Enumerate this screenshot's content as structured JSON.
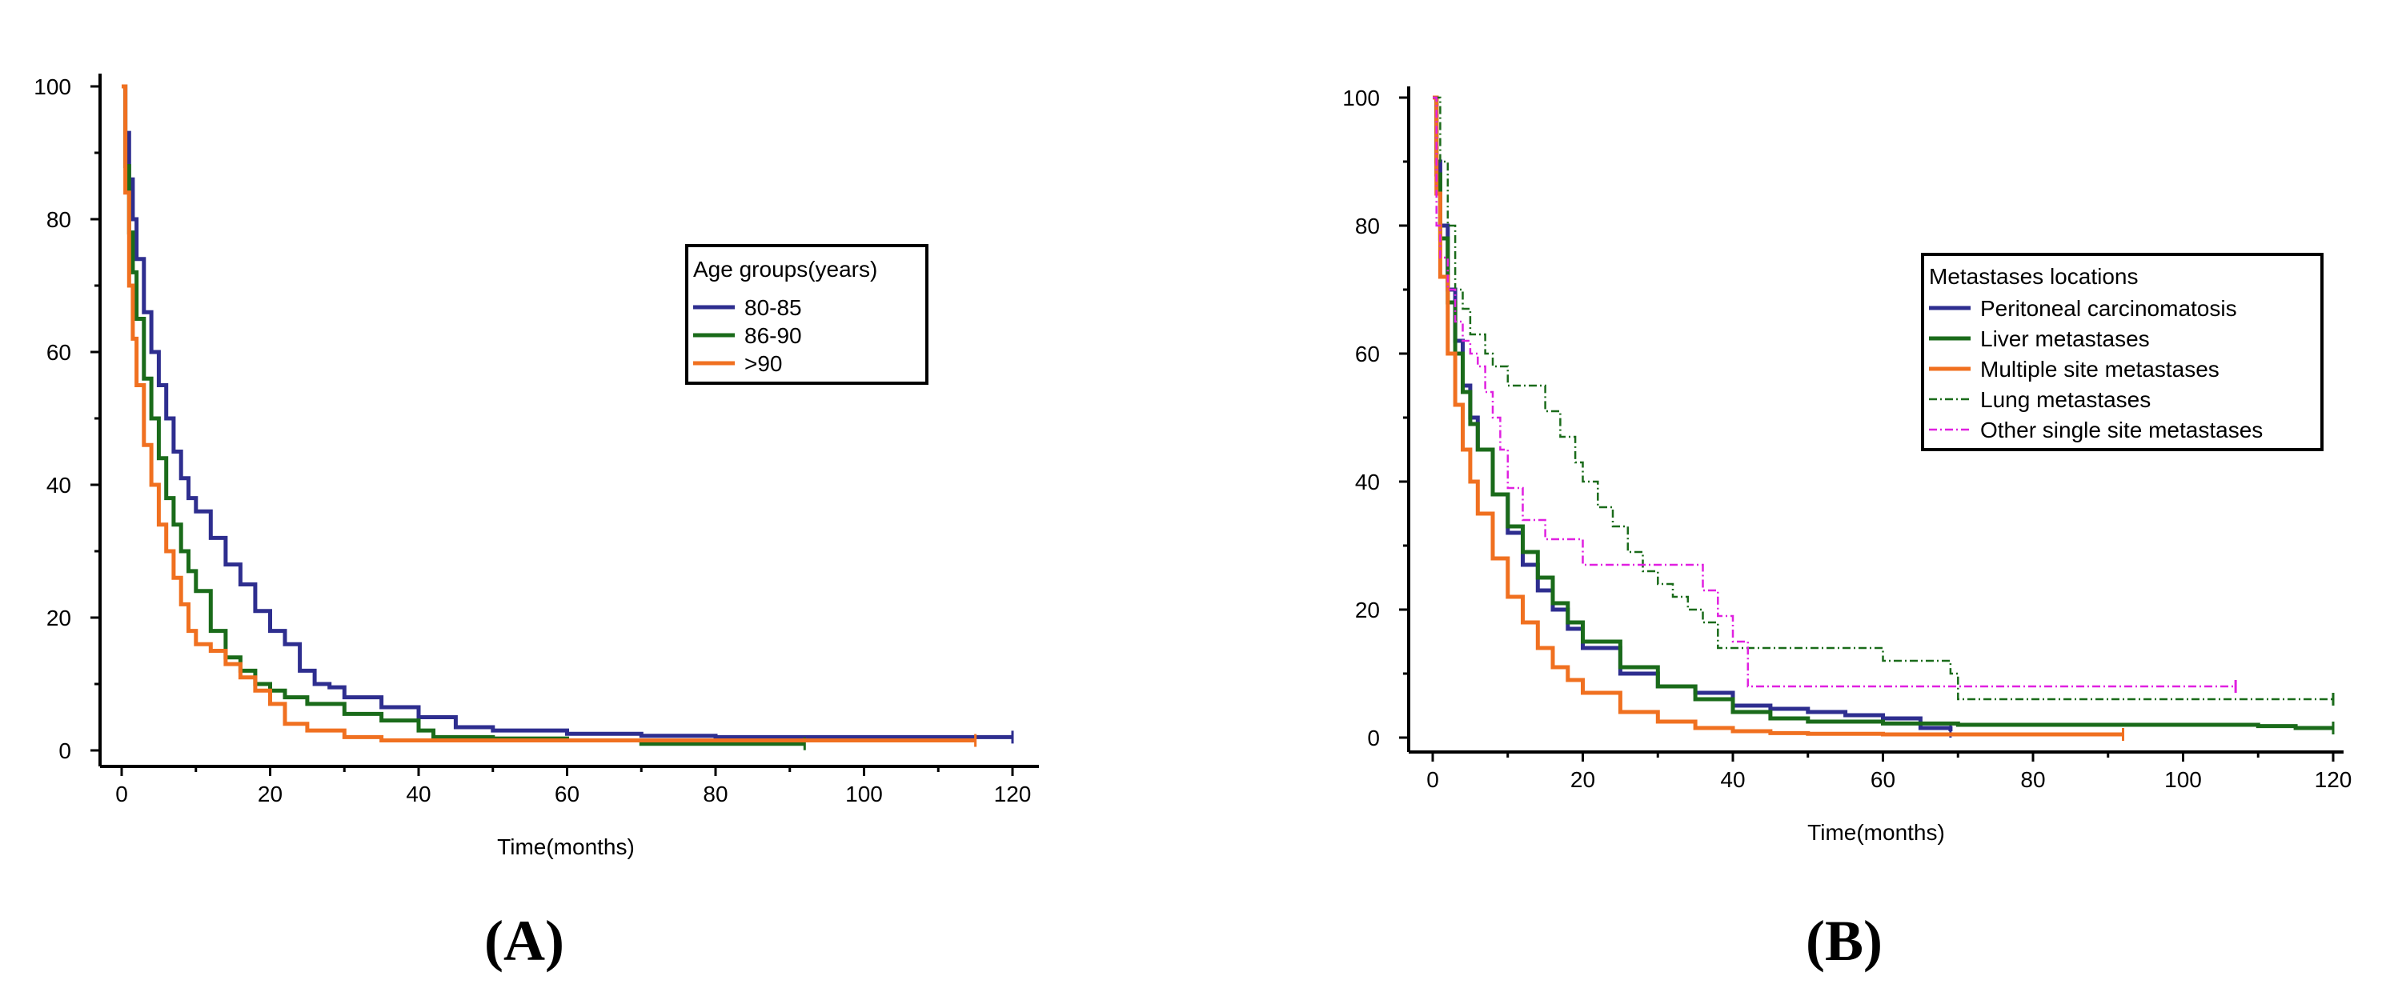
{
  "chart_data": [
    {
      "type": "line",
      "panel_label": "(A)",
      "xlabel": "Time(months)",
      "ylabel": "",
      "xlim": [
        0,
        120
      ],
      "ylim": [
        0,
        100
      ],
      "x_ticks": [
        0,
        20,
        40,
        60,
        80,
        100,
        120
      ],
      "y_ticks": [
        0,
        20,
        40,
        60,
        80,
        100
      ],
      "legend_title": "Age groups(years)",
      "legend_position": "right",
      "series": [
        {
          "name": "80-85",
          "color": "#2e2e8f",
          "style": "solid",
          "x": [
            0,
            0.5,
            1,
            1.5,
            2,
            3,
            4,
            5,
            6,
            7,
            8,
            9,
            10,
            12,
            14,
            16,
            18,
            20,
            22,
            24,
            26,
            28,
            30,
            35,
            40,
            45,
            50,
            60,
            70,
            80,
            90,
            100,
            110,
            120
          ],
          "y": [
            100,
            93,
            86,
            80,
            74,
            66,
            60,
            55,
            50,
            45,
            41,
            38,
            36,
            32,
            28,
            25,
            21,
            18,
            16,
            12,
            10,
            9.5,
            8,
            6.5,
            5,
            3.5,
            3,
            2.5,
            2.2,
            2,
            2,
            2,
            2,
            2
          ]
        },
        {
          "name": "86-90",
          "color": "#1a6b1a",
          "style": "solid",
          "x": [
            0,
            0.5,
            1,
            1.5,
            2,
            3,
            4,
            5,
            6,
            7,
            8,
            9,
            10,
            12,
            14,
            16,
            18,
            20,
            22,
            25,
            30,
            35,
            40,
            42,
            50,
            60,
            70,
            80,
            92
          ],
          "y": [
            100,
            88,
            78,
            72,
            65,
            56,
            50,
            44,
            38,
            34,
            30,
            27,
            24,
            18,
            14,
            12,
            10,
            9,
            8,
            7,
            5.5,
            4.5,
            3,
            2,
            1.8,
            1.5,
            1,
            1,
            1
          ]
        },
        {
          "name": ">90",
          "color": "#f07020",
          "style": "solid",
          "x": [
            0,
            0.5,
            1,
            1.5,
            2,
            3,
            4,
            5,
            6,
            7,
            8,
            9,
            10,
            12,
            14,
            16,
            18,
            20,
            22,
            25,
            30,
            35,
            45,
            60,
            80,
            100,
            115
          ],
          "y": [
            100,
            84,
            70,
            62,
            55,
            46,
            40,
            34,
            30,
            26,
            22,
            18,
            16,
            15,
            13,
            11,
            9,
            7,
            4,
            3,
            2,
            1.5,
            1.5,
            1.5,
            1.5,
            1.5,
            1.5
          ]
        }
      ]
    },
    {
      "type": "line",
      "panel_label": "(B)",
      "xlabel": "Time(months)",
      "ylabel": "",
      "xlim": [
        0,
        120
      ],
      "ylim": [
        0,
        100
      ],
      "x_ticks": [
        0,
        20,
        40,
        60,
        80,
        100,
        120
      ],
      "y_ticks": [
        0,
        20,
        40,
        60,
        80,
        100
      ],
      "legend_title": "Metastases locations",
      "legend_position": "right",
      "series": [
        {
          "name": "Peritoneal carcinomatosis",
          "color": "#2e2e8f",
          "style": "solid",
          "x": [
            0,
            0.5,
            1,
            2,
            3,
            4,
            5,
            6,
            8,
            10,
            12,
            14,
            16,
            18,
            20,
            25,
            30,
            35,
            40,
            45,
            50,
            55,
            60,
            65,
            69
          ],
          "y": [
            100,
            90,
            80,
            70,
            62,
            55,
            50,
            45,
            38,
            32,
            27,
            23,
            20,
            17,
            14,
            10,
            8,
            7,
            5,
            4.5,
            4,
            3.5,
            3,
            1.5,
            1
          ]
        },
        {
          "name": "Liver metastases",
          "color": "#1a6b1a",
          "style": "solid",
          "x": [
            0,
            0.5,
            1,
            2,
            3,
            4,
            5,
            6,
            8,
            10,
            12,
            14,
            16,
            18,
            20,
            25,
            30,
            35,
            40,
            45,
            50,
            60,
            70,
            80,
            90,
            100,
            110,
            115,
            120
          ],
          "y": [
            100,
            88,
            78,
            68,
            60,
            54,
            49,
            45,
            38,
            33,
            29,
            25,
            21,
            18,
            15,
            11,
            8,
            6,
            4,
            3,
            2.5,
            2.2,
            2,
            2,
            2,
            2,
            1.8,
            1.5,
            1.5
          ]
        },
        {
          "name": "Multiple site metastases",
          "color": "#f07020",
          "style": "solid",
          "x": [
            0,
            0.5,
            1,
            2,
            3,
            4,
            5,
            6,
            8,
            10,
            12,
            14,
            16,
            18,
            20,
            25,
            30,
            35,
            40,
            45,
            50,
            60,
            70,
            80,
            92
          ],
          "y": [
            100,
            85,
            72,
            60,
            52,
            45,
            40,
            35,
            28,
            22,
            18,
            14,
            11,
            9,
            7,
            4,
            2.5,
            1.5,
            1,
            0.7,
            0.6,
            0.5,
            0.5,
            0.5,
            0.5
          ]
        },
        {
          "name": "Lung metastases",
          "color": "#1a6b1a",
          "style": "dashdot",
          "x": [
            0,
            1,
            2,
            3,
            4,
            5,
            7,
            8,
            10,
            13,
            15,
            17,
            19,
            20,
            22,
            24,
            26,
            28,
            30,
            32,
            34,
            36,
            38,
            40,
            50,
            58,
            60,
            68,
            69,
            70,
            80,
            90,
            100,
            110,
            120
          ],
          "y": [
            100,
            90,
            80,
            70,
            67,
            63,
            60,
            58,
            55,
            55,
            51,
            47,
            43,
            40,
            36,
            33,
            29,
            26,
            24,
            22,
            20,
            18,
            14,
            14,
            14,
            14,
            12,
            12,
            10,
            6,
            6,
            6,
            6,
            6,
            6
          ]
        },
        {
          "name": "Other single site metastases",
          "color": "#e020e0",
          "style": "dashdot",
          "x": [
            0,
            0.5,
            1,
            2,
            3,
            4,
            5,
            6,
            7,
            8,
            9,
            10,
            12,
            15,
            17,
            20,
            25,
            30,
            35,
            36,
            38,
            40,
            42,
            50,
            60,
            70,
            80,
            90,
            100,
            107
          ],
          "y": [
            100,
            80,
            75,
            70,
            65,
            62,
            60,
            58,
            54,
            50,
            45,
            39,
            34,
            31,
            31,
            27,
            27,
            27,
            27,
            23,
            19,
            15,
            8,
            8,
            8,
            8,
            8,
            8,
            8,
            8
          ]
        }
      ]
    }
  ]
}
